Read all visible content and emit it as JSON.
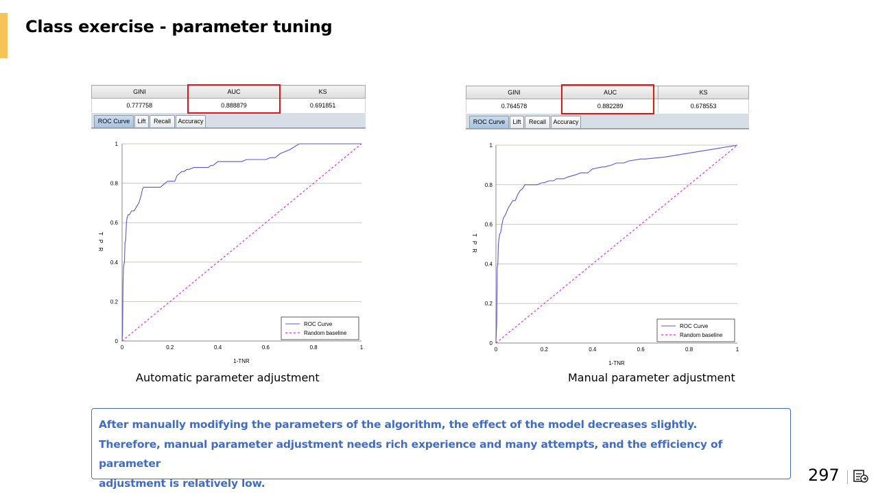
{
  "slide": {
    "title": "Class exercise - parameter tuning",
    "page_number": "297",
    "note_lines": [
      "After manually modifying the parameters of the algorithm, the effect of the model decreases slightly.",
      "Therefore, manual parameter adjustment needs rich experience and many attempts, and the efficiency of parameter",
      "adjustment is relatively low."
    ],
    "colors": {
      "accent": "#f6c356",
      "note_text": "#3f6cc4",
      "note_border": "#3b6bbf",
      "highlight": "#e01616"
    },
    "icons": [
      "slide-notes-icon"
    ]
  },
  "panels": [
    {
      "caption": "Automatic parameter adjustment",
      "metrics": {
        "headers": [
          "GINI",
          "AUC",
          "KS"
        ],
        "values": [
          "0.777758",
          "0.888879",
          "0.691851"
        ]
      },
      "highlighted_metric": "AUC",
      "tabs": [
        "ROC Curve",
        "Lift",
        "Recall",
        "Accuracy"
      ],
      "active_tab": "ROC Curve"
    },
    {
      "caption": "Manual parameter adjustment",
      "metrics": {
        "headers": [
          "GINI",
          "AUC",
          "KS"
        ],
        "values": [
          "0.764578",
          "0.882289",
          "0.678553"
        ]
      },
      "highlighted_metric": "AUC",
      "tabs": [
        "ROC Curve",
        "Lift",
        "Recall",
        "Accuracy"
      ],
      "active_tab": "ROC Curve"
    }
  ],
  "chart_data": [
    {
      "type": "line",
      "title": "",
      "xlabel": "1-TNR",
      "ylabel": "T P R",
      "xlim": [
        0,
        1
      ],
      "ylim": [
        0,
        1
      ],
      "xticks": [
        "0",
        "0.2",
        "0.4",
        "0.6",
        "0.8",
        "1"
      ],
      "yticks": [
        "0",
        "0.2",
        "0.4",
        "0.6",
        "0.8",
        "1"
      ],
      "grid": "horizontal",
      "legend_position": "bottom-right",
      "series": [
        {
          "name": "ROC Curve",
          "color": "#5555dd",
          "style": "solid",
          "x": [
            0,
            0.002,
            0.004,
            0.006,
            0.01,
            0.012,
            0.015,
            0.018,
            0.02,
            0.025,
            0.03,
            0.04,
            0.05,
            0.06,
            0.07,
            0.08,
            0.085,
            0.09,
            0.1,
            0.11,
            0.13,
            0.16,
            0.18,
            0.19,
            0.2,
            0.22,
            0.23,
            0.24,
            0.25,
            0.26,
            0.27,
            0.28,
            0.3,
            0.33,
            0.36,
            0.37,
            0.38,
            0.4,
            0.45,
            0.5,
            0.52,
            0.55,
            0.6,
            0.62,
            0.64,
            0.66,
            0.7,
            0.74,
            0.8,
            0.9,
            1
          ],
          "y": [
            0,
            0.05,
            0.3,
            0.38,
            0.4,
            0.5,
            0.51,
            0.6,
            0.62,
            0.64,
            0.64,
            0.66,
            0.66,
            0.68,
            0.7,
            0.74,
            0.77,
            0.78,
            0.78,
            0.78,
            0.78,
            0.78,
            0.8,
            0.81,
            0.81,
            0.81,
            0.84,
            0.85,
            0.86,
            0.86,
            0.87,
            0.87,
            0.88,
            0.88,
            0.88,
            0.89,
            0.89,
            0.91,
            0.91,
            0.91,
            0.92,
            0.92,
            0.92,
            0.93,
            0.93,
            0.95,
            0.97,
            1,
            1,
            1,
            1
          ]
        },
        {
          "name": "Random baseline",
          "color": "#ee22ee",
          "style": "dashed",
          "x": [
            0,
            1
          ],
          "y": [
            0,
            1
          ]
        }
      ]
    },
    {
      "type": "line",
      "title": "",
      "xlabel": "1-TNR",
      "ylabel": "T P R",
      "xlim": [
        0,
        1
      ],
      "ylim": [
        0,
        1
      ],
      "xticks": [
        "0",
        "0.2",
        "0.4",
        "0.6",
        "0.8",
        "1"
      ],
      "yticks": [
        "0",
        "0.2",
        "0.4",
        "0.6",
        "0.8",
        "1"
      ],
      "grid": "horizontal",
      "legend_position": "bottom-right",
      "series": [
        {
          "name": "ROC Curve",
          "color": "#5555dd",
          "style": "solid",
          "x": [
            0,
            0.003,
            0.005,
            0.008,
            0.01,
            0.015,
            0.02,
            0.025,
            0.03,
            0.04,
            0.05,
            0.06,
            0.07,
            0.08,
            0.09,
            0.1,
            0.11,
            0.12,
            0.14,
            0.17,
            0.19,
            0.2,
            0.22,
            0.24,
            0.25,
            0.28,
            0.3,
            0.33,
            0.35,
            0.38,
            0.4,
            0.44,
            0.45,
            0.48,
            0.5,
            0.53,
            0.55,
            0.6,
            0.62,
            0.7,
            0.8,
            0.9,
            1
          ],
          "y": [
            0,
            0.1,
            0.38,
            0.4,
            0.5,
            0.55,
            0.56,
            0.6,
            0.63,
            0.65,
            0.68,
            0.7,
            0.72,
            0.72,
            0.75,
            0.77,
            0.78,
            0.8,
            0.8,
            0.8,
            0.81,
            0.81,
            0.82,
            0.82,
            0.83,
            0.83,
            0.84,
            0.85,
            0.86,
            0.86,
            0.88,
            0.89,
            0.89,
            0.9,
            0.91,
            0.91,
            0.92,
            0.93,
            0.93,
            0.94,
            0.96,
            0.98,
            1
          ]
        },
        {
          "name": "Random baseline",
          "color": "#ee22ee",
          "style": "dashed",
          "x": [
            0,
            1
          ],
          "y": [
            0,
            1
          ]
        }
      ]
    }
  ]
}
